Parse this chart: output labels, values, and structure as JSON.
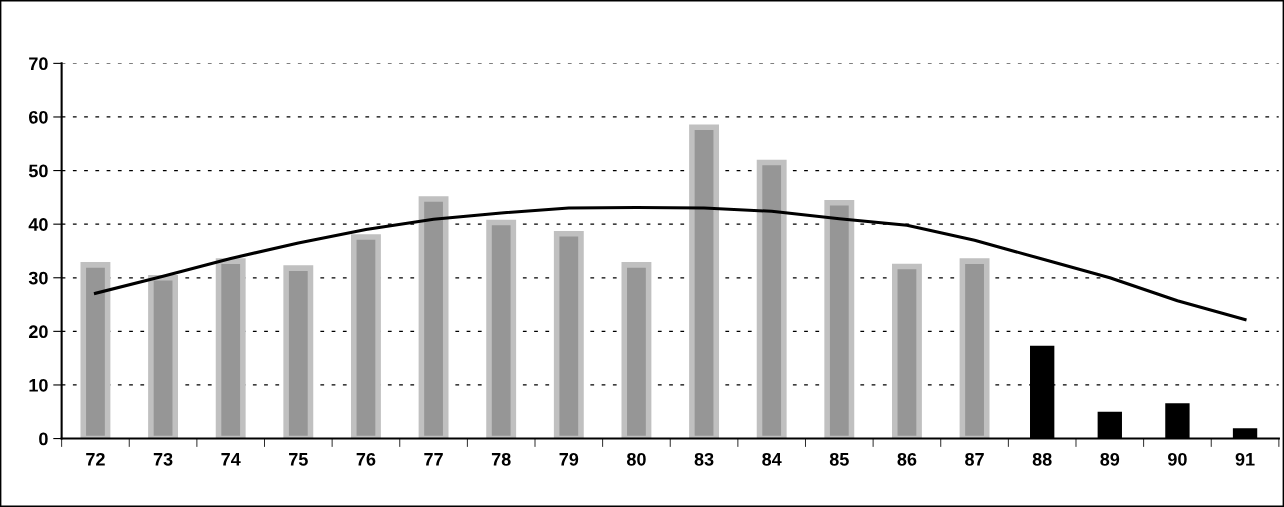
{
  "chart_data": {
    "type": "bar",
    "categories": [
      "72",
      "73",
      "74",
      "75",
      "76",
      "77",
      "78",
      "79",
      "80",
      "83",
      "84",
      "85",
      "86",
      "87",
      "88",
      "89",
      "90",
      "91"
    ],
    "series": [
      {
        "color": "#969696",
        "values": [
          32.4,
          30.0,
          33.1,
          31.8,
          37.6,
          44.7,
          40.3,
          38.2,
          32.4,
          58.1,
          51.5,
          44.0,
          32.1,
          33.1,
          null,
          null,
          null,
          null
        ]
      },
      {
        "color": "#000000",
        "values": [
          null,
          null,
          null,
          null,
          null,
          null,
          null,
          null,
          null,
          null,
          null,
          null,
          null,
          null,
          17.3,
          5.0,
          6.6,
          1.9
        ]
      },
      {
        "type": "line",
        "color": "#000000",
        "values": [
          27.1,
          30.3,
          33.6,
          36.5,
          39.0,
          40.9,
          42.1,
          43.0,
          43.1,
          43.0,
          42.4,
          41.0,
          39.8,
          37.0,
          33.5,
          30.0,
          25.7,
          22.2
        ]
      }
    ],
    "ylim": [
      0,
      70
    ],
    "yticks": [
      0,
      10,
      20,
      30,
      40,
      50,
      60,
      70
    ],
    "grid": "y",
    "legend": false,
    "marker": "none",
    "line_style": "solid"
  }
}
